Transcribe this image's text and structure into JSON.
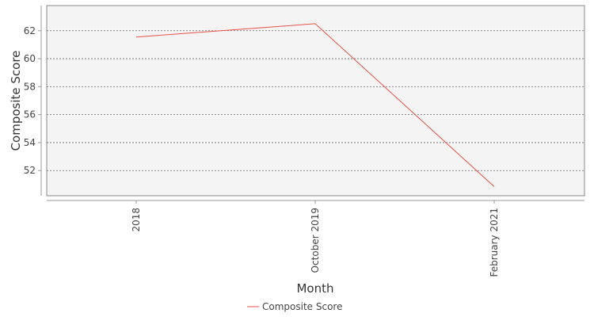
{
  "chart_data": {
    "type": "line",
    "title": "",
    "xlabel": "Month",
    "ylabel": "Composite Score",
    "categories": [
      "2018",
      "October 2019",
      "February 2021"
    ],
    "series": [
      {
        "name": "Composite Score",
        "values": [
          61.55,
          62.5,
          50.85
        ],
        "color": "#e8534a"
      }
    ],
    "ylim": [
      50.2,
      63.8
    ],
    "yticks": [
      52,
      54,
      56,
      58,
      60,
      62
    ],
    "grid": true,
    "legend": "bottom-center",
    "colors": {
      "plot_background": "#f4f4f4",
      "plot_border": "#888888",
      "gridline": "#666666"
    }
  }
}
